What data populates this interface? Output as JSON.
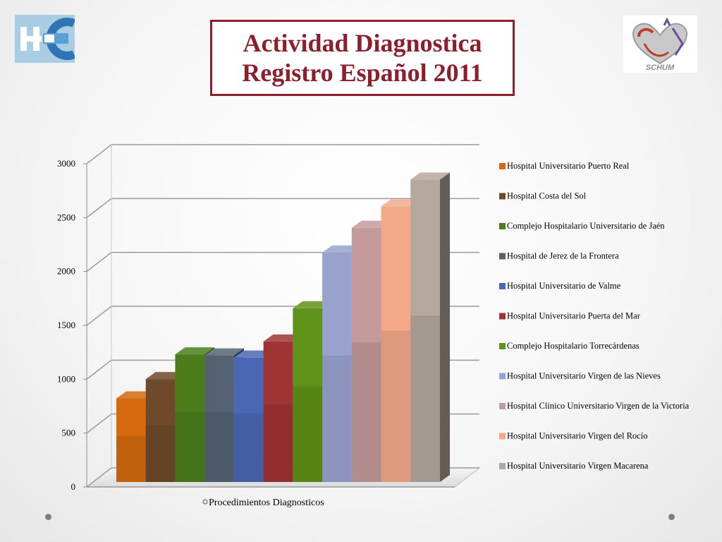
{
  "title": {
    "line1": "Actividad Diagnostica",
    "line2": "Registro Español 2011"
  },
  "logos": {
    "left": "HC",
    "right": "SCHUM"
  },
  "chart_data": {
    "type": "bar",
    "title": "Actividad Diagnostica Registro Español 2011",
    "categories": [
      "Procedimientos Diagnosticos"
    ],
    "xlabel": "",
    "ylabel": "",
    "ylim": [
      0,
      3000
    ],
    "yticks": [
      0,
      500,
      1000,
      1500,
      2000,
      2500,
      3000
    ],
    "grid": true,
    "legend_position": "right",
    "series": [
      {
        "name": "Hospital Universitario Puerto Real",
        "values": [
          780
        ],
        "color": "#d56a0e"
      },
      {
        "name": "Hospital Costa del Sol",
        "values": [
          960
        ],
        "color": "#6e4a2a"
      },
      {
        "name": "Complejo Hospitalario Universitario de Jaén",
        "values": [
          1190
        ],
        "color": "#4a7d1a"
      },
      {
        "name": "Hospital de Jerez de la Frontera",
        "values": [
          1180
        ],
        "color": "#536272"
      },
      {
        "name": "Hospital Universitario de Valme",
        "values": [
          1160
        ],
        "color": "#4a67b6"
      },
      {
        "name": "Hospital Universitario Puerta del Mar",
        "values": [
          1310
        ],
        "color": "#9e3434"
      },
      {
        "name": "Complejo Hospitalario Torrecárdenas",
        "values": [
          1620
        ],
        "color": "#5f9218"
      },
      {
        "name": "Hospital Universitario Virgen de las Nieves",
        "values": [
          2140
        ],
        "color": "#98a2cf"
      },
      {
        "name": "Hospital Clínico Universitario Virgen de la Victoria",
        "values": [
          2370
        ],
        "color": "#c49a9a"
      },
      {
        "name": "Hospital Universitario Virgen del Rocío",
        "values": [
          2570
        ],
        "color": "#f3a988"
      },
      {
        "name": "Hospital Universitario Virgen Macarena",
        "values": [
          2820
        ],
        "color": "#b4a89e"
      }
    ]
  }
}
